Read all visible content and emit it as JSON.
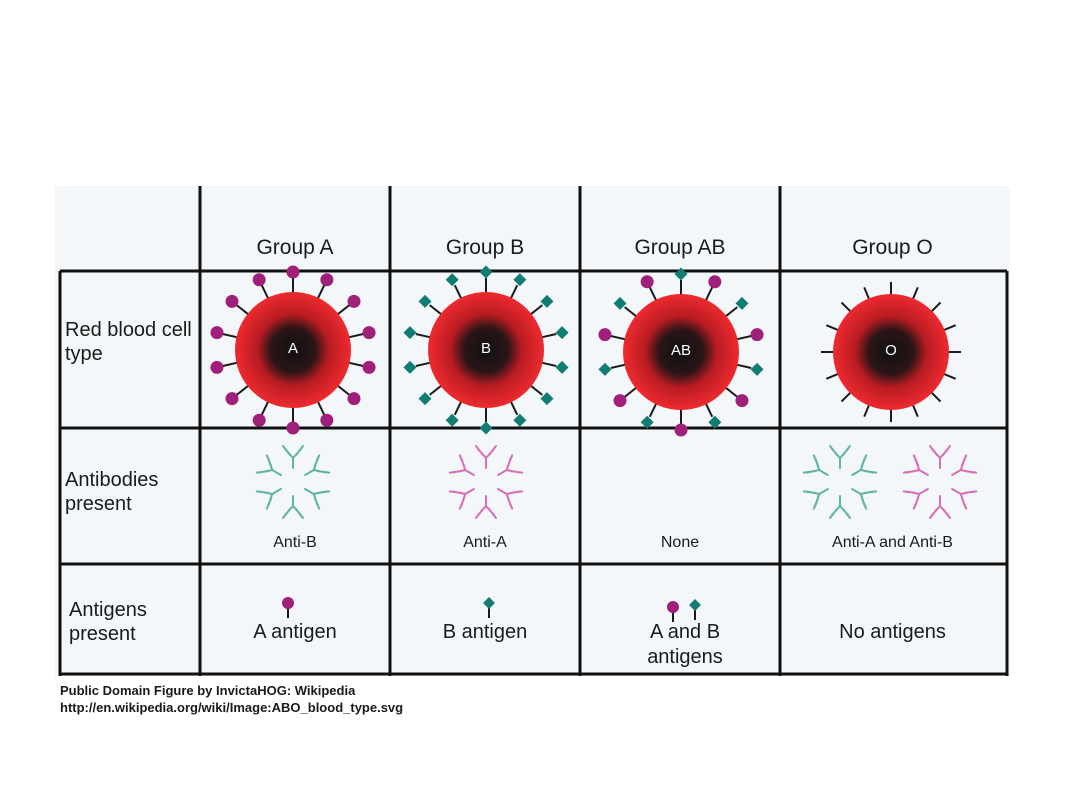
{
  "columns": [
    {
      "header": "Group A",
      "cell_letter": "A",
      "antibodies_label": "Anti-B",
      "antigens_label": "A antigen"
    },
    {
      "header": "Group B",
      "cell_letter": "B",
      "antibodies_label": "Anti-A",
      "antigens_label": "B antigen"
    },
    {
      "header": "Group AB",
      "cell_letter": "AB",
      "antibodies_label": "None",
      "antigens_label": "A and B antigens"
    },
    {
      "header": "Group O",
      "cell_letter": "O",
      "antibodies_label": "Anti-A and Anti-B",
      "antigens_label": "No antigens"
    }
  ],
  "rows": {
    "red_blood_cell": "Red blood cell type",
    "antibodies": "Antibodies present",
    "antigens": "Antigens present"
  },
  "credit": {
    "line1": "Public Domain Figure by InvictaHOG: Wikipedia",
    "line2": "http://en.wikipedia.org/wiki/Image:ABO_blood_type.svg"
  },
  "colors": {
    "cell_red": "#e8222a",
    "cell_core": "#1a1a1a",
    "antigen_a": "#a01f7a",
    "antigen_b": "#0f7d73",
    "antibody_anti_b": "#5fb3a6",
    "antibody_anti_a": "#d76fb6",
    "grid": "#111111"
  }
}
